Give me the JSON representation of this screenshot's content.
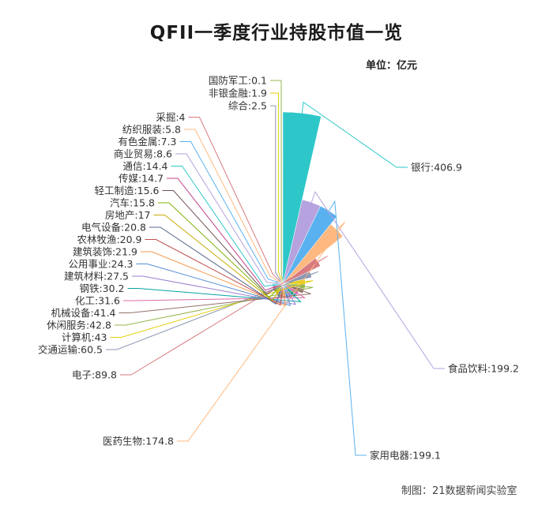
{
  "title": "QFII一季度行业持股市值一览",
  "unit_label": "单位：亿元",
  "credit": "制图：21数据新闻实验室",
  "chart_data": {
    "type": "pie",
    "subtype": "rose",
    "title": "QFII一季度行业持股市值一览",
    "unit": "亿元",
    "label_format": "{name}:{value}",
    "slices": [
      {
        "name": "银行",
        "value": 406.9,
        "color": "#2ec7c9"
      },
      {
        "name": "食品饮料",
        "value": 199.2,
        "color": "#b6a2de"
      },
      {
        "name": "家用电器",
        "value": 199.1,
        "color": "#5ab1ef"
      },
      {
        "name": "医药生物",
        "value": 174.8,
        "color": "#ffb980"
      },
      {
        "name": "电子",
        "value": 89.8,
        "color": "#d87a80"
      },
      {
        "name": "交通运输",
        "value": 60.5,
        "color": "#8d98b3"
      },
      {
        "name": "计算机",
        "value": 43,
        "color": "#e5cf0d"
      },
      {
        "name": "休闲服务",
        "value": 42.8,
        "color": "#97b552"
      },
      {
        "name": "机械设备",
        "value": 41.4,
        "color": "#95706d"
      },
      {
        "name": "化工",
        "value": 31.6,
        "color": "#dc69aa"
      },
      {
        "name": "钢铁",
        "value": 30.2,
        "color": "#07a2a4"
      },
      {
        "name": "建筑材料",
        "value": 27.5,
        "color": "#9a7fd1"
      },
      {
        "name": "公用事业",
        "value": 24.3,
        "color": "#588dd5"
      },
      {
        "name": "建筑装饰",
        "value": 21.9,
        "color": "#f5994e"
      },
      {
        "name": "农林牧渔",
        "value": 20.9,
        "color": "#c05050"
      },
      {
        "name": "电气设备",
        "value": 20.8,
        "color": "#59678c"
      },
      {
        "name": "房地产",
        "value": 17,
        "color": "#c9ab00"
      },
      {
        "name": "汽车",
        "value": 15.8,
        "color": "#7eb00a"
      },
      {
        "name": "轻工制造",
        "value": 15.6,
        "color": "#6f5553"
      },
      {
        "name": "传媒",
        "value": 14.7,
        "color": "#c14089"
      },
      {
        "name": "通信",
        "value": 14.4,
        "color": "#2ec7c9"
      },
      {
        "name": "商业贸易",
        "value": 8.6,
        "color": "#b6a2de"
      },
      {
        "name": "有色金属",
        "value": 7.3,
        "color": "#5ab1ef"
      },
      {
        "name": "纺织服装",
        "value": 5.8,
        "color": "#ffb980"
      },
      {
        "name": "采掘",
        "value": 4,
        "color": "#d87a80"
      },
      {
        "name": "综合",
        "value": 2.5,
        "color": "#8d98b3"
      },
      {
        "name": "非银金融",
        "value": 1.9,
        "color": "#e5cf0d"
      },
      {
        "name": "国防军工",
        "value": 0.1,
        "color": "#97b552"
      }
    ]
  }
}
